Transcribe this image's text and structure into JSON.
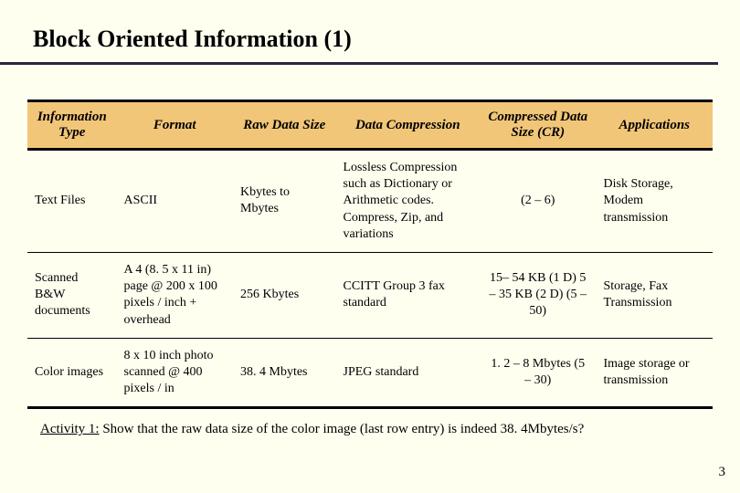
{
  "slide": {
    "title": "Block Oriented Information (1)",
    "page_number": "3"
  },
  "table": {
    "type": "table",
    "header_bg": "#f2c678",
    "border_color": "#000000",
    "columns": [
      {
        "label": "Information Type",
        "width": "13%",
        "align": "left"
      },
      {
        "label": "Format",
        "width": "17%",
        "align": "left"
      },
      {
        "label": "Raw Data Size",
        "width": "15%",
        "align": "left"
      },
      {
        "label": "Data Compression",
        "width": "21%",
        "align": "left"
      },
      {
        "label": "Compressed Data Size (CR)",
        "width": "17%",
        "align": "center"
      },
      {
        "label": "Applications",
        "width": "17%",
        "align": "left"
      }
    ],
    "rows": [
      {
        "info_type": "Text Files",
        "format": "ASCII",
        "raw_size": "Kbytes to Mbytes",
        "compression": "Lossless Compression such as Dictionary or Arithmetic codes. Compress, Zip, and variations",
        "compressed_size": "(2 – 6)",
        "applications": "Disk Storage, Modem transmission"
      },
      {
        "info_type": "Scanned B&W documents",
        "format": "A 4 (8. 5 x 11 in) page @ 200 x 100 pixels / inch + overhead",
        "raw_size": "256 Kbytes",
        "compression": "CCITT Group 3 fax standard",
        "compressed_size": "15– 54 KB (1 D) 5 – 35 KB (2 D) (5 – 50)",
        "applications": "Storage, Fax Transmission"
      },
      {
        "info_type": "Color images",
        "format": "8 x 10 inch photo scanned @ 400 pixels / in",
        "raw_size": "38. 4 Mbytes",
        "compression": "JPEG standard",
        "compressed_size": "1. 2 – 8 Mbytes (5 – 30)",
        "applications": "Image storage or transmission"
      }
    ]
  },
  "activity": {
    "label": "Activity 1:",
    "text": " Show that the raw data size of the color image (last row entry) is indeed 38. 4Mbytes/s?"
  },
  "colors": {
    "background": "#fffff0",
    "header_bg": "#f2c678",
    "title_rule": "#2a2640",
    "text": "#000000"
  }
}
